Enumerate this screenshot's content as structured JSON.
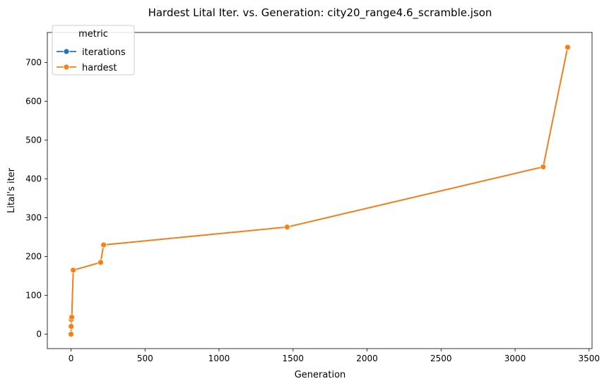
{
  "chart_data": {
    "type": "line",
    "title": "Hardest Lital Iter. vs. Generation: city20_range4.6_scramble.json",
    "xlabel": "Generation",
    "ylabel": "Lital's iter",
    "xlim": [
      -160,
      3520
    ],
    "ylim": [
      -37,
      777
    ],
    "xticks": [
      0,
      500,
      1000,
      1500,
      2000,
      2500,
      3000,
      3500
    ],
    "yticks": [
      0,
      100,
      200,
      300,
      400,
      500,
      600,
      700
    ],
    "grid": false,
    "legend": {
      "title": "metric",
      "placement": "top-left"
    },
    "series": [
      {
        "name": "iterations",
        "color": "#1f77b4",
        "x": [
          0,
          1,
          2,
          5,
          15,
          200,
          220,
          1460,
          3190,
          3355
        ],
        "y": [
          0,
          20,
          38,
          44,
          165,
          185,
          230,
          276,
          431,
          739
        ]
      },
      {
        "name": "hardest",
        "color": "#ff7f0e",
        "x": [
          0,
          1,
          2,
          5,
          15,
          200,
          220,
          1460,
          3190,
          3355
        ],
        "y": [
          0,
          20,
          38,
          44,
          165,
          185,
          230,
          276,
          431,
          739
        ]
      }
    ]
  }
}
